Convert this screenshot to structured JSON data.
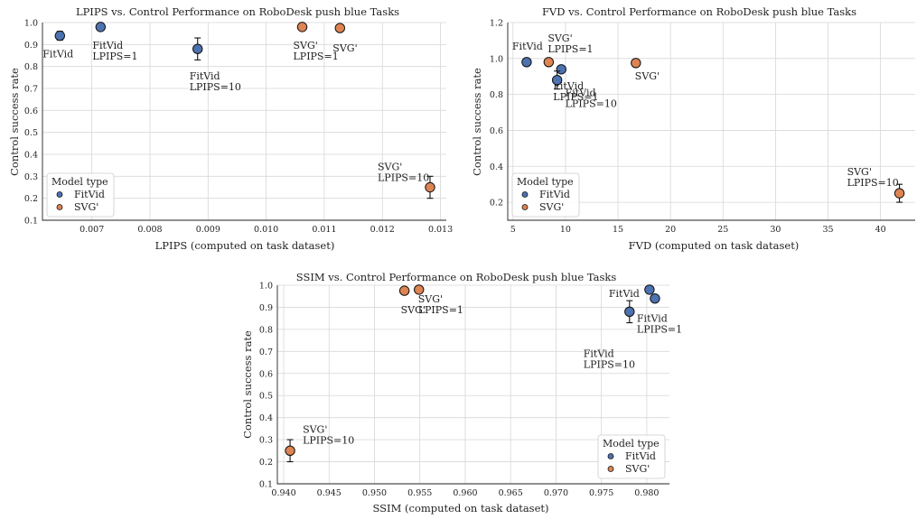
{
  "colors": {
    "FitVid": "#4c72b0",
    "SVG'": "#dd8452",
    "edge": "#111111",
    "grid": "#d7d7d7"
  },
  "chart_data": [
    {
      "type": "scatter",
      "title": "LPIPS vs. Control Performance on RoboDesk push blue Tasks",
      "xlabel": "LPIPS (computed on task dataset)",
      "ylabel": "Control success rate",
      "xlim": [
        0.00615,
        0.0131
      ],
      "ylim": [
        0.1,
        1.0
      ],
      "xticks": [
        "0.007",
        "0.008",
        "0.009",
        "0.010",
        "0.011",
        "0.012",
        "0.013"
      ],
      "yticks": [
        "0.1",
        "0.2",
        "0.3",
        "0.4",
        "0.5",
        "0.6",
        "0.7",
        "0.8",
        "0.9",
        "1.0"
      ],
      "grid": true,
      "legend": {
        "title": "Model type",
        "entries": [
          "FitVid",
          "SVG'"
        ],
        "position": "bottom-left"
      },
      "points": [
        {
          "series": "FitVid",
          "x": 0.00645,
          "y": 0.94,
          "err": 0.02,
          "label": [
            "FitVid"
          ]
        },
        {
          "series": "FitVid",
          "x": 0.00715,
          "y": 0.98,
          "err": 0.0,
          "label": [
            "FitVid",
            "LPIPS=1"
          ]
        },
        {
          "series": "FitVid",
          "x": 0.00882,
          "y": 0.88,
          "err": 0.05,
          "label": [
            "FitVid",
            "LPIPS=10"
          ]
        },
        {
          "series": "SVG'",
          "x": 0.01062,
          "y": 0.98,
          "err": 0.0,
          "label": [
            "SVG'",
            "LPIPS=1"
          ]
        },
        {
          "series": "SVG'",
          "x": 0.01127,
          "y": 0.975,
          "err": 0.0,
          "label": [
            "SVG'"
          ]
        },
        {
          "series": "SVG'",
          "x": 0.01282,
          "y": 0.25,
          "err": 0.05,
          "label": [
            "SVG'",
            "LPIPS=10"
          ]
        }
      ]
    },
    {
      "type": "scatter",
      "title": "FVD vs. Control Performance on RoboDesk push blue Tasks",
      "xlabel": "FVD (computed on task dataset)",
      "ylabel": "Control success rate",
      "xlim": [
        4.5,
        43.3
      ],
      "ylim": [
        0.1,
        1.2
      ],
      "xticks": [
        "5",
        "10",
        "15",
        "20",
        "25",
        "30",
        "35",
        "40"
      ],
      "yticks": [
        "0.2",
        "0.4",
        "0.6",
        "0.8",
        "1.0",
        "1.2"
      ],
      "grid": true,
      "legend": {
        "title": "Model type",
        "entries": [
          "FitVid",
          "SVG'"
        ],
        "position": "bottom-left"
      },
      "points": [
        {
          "series": "FitVid",
          "x": 6.3,
          "y": 0.98,
          "err": 0.0,
          "label": [
            "FitVid"
          ]
        },
        {
          "series": "FitVid",
          "x": 9.6,
          "y": 0.94,
          "err": 0.0,
          "label": [
            "FitVid",
            "LPIPS=1"
          ]
        },
        {
          "series": "FitVid",
          "x": 9.2,
          "y": 0.88,
          "err": 0.05,
          "label": [
            "FitVid",
            "LPIPS=10"
          ]
        },
        {
          "series": "SVG'",
          "x": 8.4,
          "y": 0.98,
          "err": 0.0,
          "label": [
            "SVG'",
            "LPIPS=1"
          ]
        },
        {
          "series": "SVG'",
          "x": 16.7,
          "y": 0.975,
          "err": 0.0,
          "label": [
            "SVG'"
          ]
        },
        {
          "series": "SVG'",
          "x": 41.8,
          "y": 0.25,
          "err": 0.05,
          "label": [
            "SVG'",
            "LPIPS=10"
          ]
        }
      ]
    },
    {
      "type": "scatter",
      "title": "SSIM vs. Control Performance on RoboDesk push blue Tasks",
      "xlabel": "SSIM (computed on task dataset)",
      "ylabel": "Control success rate",
      "xlim": [
        0.9393,
        0.9825
      ],
      "ylim": [
        0.1,
        1.0
      ],
      "xticks": [
        "0.940",
        "0.945",
        "0.950",
        "0.955",
        "0.960",
        "0.965",
        "0.970",
        "0.975",
        "0.980"
      ],
      "yticks": [
        "0.1",
        "0.2",
        "0.3",
        "0.4",
        "0.5",
        "0.6",
        "0.7",
        "0.8",
        "0.9",
        "1.0"
      ],
      "grid": true,
      "legend": {
        "title": "Model type",
        "entries": [
          "FitVid",
          "SVG'"
        ],
        "position": "bottom-right"
      },
      "points": [
        {
          "series": "SVG'",
          "x": 0.9533,
          "y": 0.975,
          "err": 0.0,
          "label": [
            "SVG'"
          ]
        },
        {
          "series": "SVG'",
          "x": 0.9549,
          "y": 0.98,
          "err": 0.0,
          "label": [
            "SVG'",
            "LPIPS=1"
          ]
        },
        {
          "series": "SVG'",
          "x": 0.9407,
          "y": 0.25,
          "err": 0.05,
          "label": [
            "SVG'",
            "LPIPS=10"
          ]
        },
        {
          "series": "FitVid",
          "x": 0.9803,
          "y": 0.98,
          "err": 0.0,
          "label": [
            "FitVid"
          ]
        },
        {
          "series": "FitVid",
          "x": 0.9809,
          "y": 0.94,
          "err": 0.0,
          "label": [
            "FitVid",
            "LPIPS=1"
          ]
        },
        {
          "series": "FitVid",
          "x": 0.9781,
          "y": 0.88,
          "err": 0.05,
          "label": [
            "FitVid",
            "LPIPS=10"
          ]
        }
      ]
    }
  ]
}
